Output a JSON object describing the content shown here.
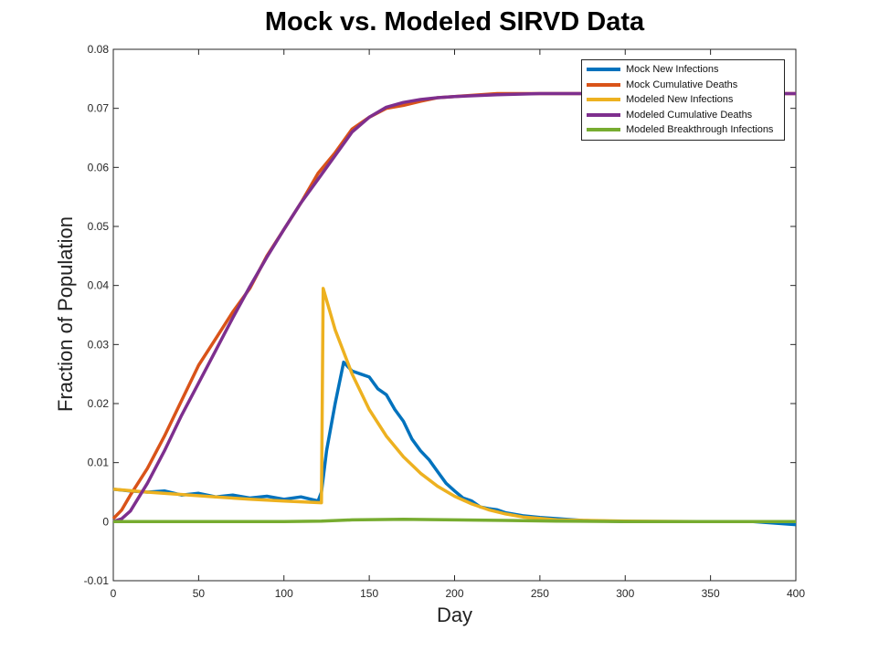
{
  "chart_data": {
    "type": "line",
    "title": "Mock vs. Modeled SIRVD Data",
    "xlabel": "Day",
    "ylabel": "Fraction of Population",
    "xlim": [
      0,
      400
    ],
    "ylim": [
      -0.01,
      0.08
    ],
    "xticks": [
      "0",
      "50",
      "100",
      "150",
      "200",
      "250",
      "300",
      "350",
      "400"
    ],
    "yticks": [
      "-0.01",
      "0",
      "0.01",
      "0.02",
      "0.03",
      "0.04",
      "0.05",
      "0.06",
      "0.07",
      "0.08"
    ],
    "legend_position": "top-right",
    "grid": false,
    "series": [
      {
        "name": "Mock New Infections",
        "color": "#0072BD",
        "points": [
          [
            0,
            0.0055
          ],
          [
            10,
            0.0052
          ],
          [
            20,
            0.005
          ],
          [
            30,
            0.0052
          ],
          [
            40,
            0.0045
          ],
          [
            50,
            0.0048
          ],
          [
            60,
            0.0042
          ],
          [
            70,
            0.0045
          ],
          [
            80,
            0.004
          ],
          [
            90,
            0.0043
          ],
          [
            100,
            0.0038
          ],
          [
            110,
            0.0042
          ],
          [
            120,
            0.0035
          ],
          [
            122,
            0.005
          ],
          [
            125,
            0.012
          ],
          [
            130,
            0.02
          ],
          [
            135,
            0.027
          ],
          [
            140,
            0.0255
          ],
          [
            145,
            0.025
          ],
          [
            150,
            0.0245
          ],
          [
            155,
            0.0225
          ],
          [
            160,
            0.0215
          ],
          [
            165,
            0.019
          ],
          [
            170,
            0.017
          ],
          [
            175,
            0.014
          ],
          [
            180,
            0.012
          ],
          [
            185,
            0.0105
          ],
          [
            190,
            0.0085
          ],
          [
            195,
            0.0065
          ],
          [
            200,
            0.0052
          ],
          [
            205,
            0.004
          ],
          [
            210,
            0.0035
          ],
          [
            215,
            0.0025
          ],
          [
            220,
            0.0022
          ],
          [
            225,
            0.002
          ],
          [
            230,
            0.0015
          ],
          [
            240,
            0.001
          ],
          [
            250,
            0.0007
          ],
          [
            275,
            0.0002
          ],
          [
            300,
            0.0
          ],
          [
            325,
            0.0
          ],
          [
            350,
            0.0
          ],
          [
            375,
            0.0
          ],
          [
            400,
            -0.0005
          ]
        ]
      },
      {
        "name": "Mock Cumulative Deaths",
        "color": "#D95319",
        "points": [
          [
            0,
            0.0005
          ],
          [
            5,
            0.002
          ],
          [
            10,
            0.0045
          ],
          [
            20,
            0.009
          ],
          [
            30,
            0.0145
          ],
          [
            40,
            0.0205
          ],
          [
            50,
            0.0265
          ],
          [
            60,
            0.031
          ],
          [
            70,
            0.0355
          ],
          [
            80,
            0.0395
          ],
          [
            90,
            0.045
          ],
          [
            100,
            0.0495
          ],
          [
            110,
            0.054
          ],
          [
            120,
            0.059
          ],
          [
            130,
            0.0625
          ],
          [
            140,
            0.0665
          ],
          [
            150,
            0.0685
          ],
          [
            160,
            0.07
          ],
          [
            170,
            0.0705
          ],
          [
            180,
            0.0712
          ],
          [
            190,
            0.0718
          ],
          [
            200,
            0.072
          ],
          [
            225,
            0.0725
          ],
          [
            250,
            0.0725
          ],
          [
            275,
            0.0725
          ],
          [
            300,
            0.0725
          ],
          [
            325,
            0.0722
          ],
          [
            350,
            0.0725
          ],
          [
            375,
            0.0725
          ],
          [
            400,
            0.0725
          ]
        ]
      },
      {
        "name": "Modeled New Infections",
        "color": "#EDB120",
        "points": [
          [
            0,
            0.0055
          ],
          [
            20,
            0.005
          ],
          [
            40,
            0.0046
          ],
          [
            60,
            0.0042
          ],
          [
            80,
            0.0038
          ],
          [
            100,
            0.0035
          ],
          [
            122,
            0.0032
          ],
          [
            123,
            0.0395
          ],
          [
            130,
            0.0325
          ],
          [
            140,
            0.025
          ],
          [
            150,
            0.019
          ],
          [
            160,
            0.0145
          ],
          [
            170,
            0.011
          ],
          [
            180,
            0.0082
          ],
          [
            190,
            0.006
          ],
          [
            200,
            0.0043
          ],
          [
            210,
            0.003
          ],
          [
            220,
            0.002
          ],
          [
            230,
            0.0013
          ],
          [
            240,
            0.0008
          ],
          [
            260,
            0.0003
          ],
          [
            300,
            0.0001
          ],
          [
            350,
            0.0
          ],
          [
            400,
            0.0
          ]
        ]
      },
      {
        "name": "Modeled Cumulative Deaths",
        "color": "#7E2F8E",
        "points": [
          [
            0,
            0.0
          ],
          [
            5,
            0.0005
          ],
          [
            10,
            0.0018
          ],
          [
            20,
            0.0065
          ],
          [
            30,
            0.012
          ],
          [
            40,
            0.018
          ],
          [
            50,
            0.0235
          ],
          [
            60,
            0.029
          ],
          [
            70,
            0.0345
          ],
          [
            80,
            0.0398
          ],
          [
            90,
            0.0448
          ],
          [
            100,
            0.0495
          ],
          [
            110,
            0.054
          ],
          [
            120,
            0.058
          ],
          [
            130,
            0.062
          ],
          [
            140,
            0.066
          ],
          [
            150,
            0.0685
          ],
          [
            160,
            0.0702
          ],
          [
            170,
            0.071
          ],
          [
            180,
            0.0715
          ],
          [
            190,
            0.0718
          ],
          [
            200,
            0.072
          ],
          [
            225,
            0.0723
          ],
          [
            250,
            0.0725
          ],
          [
            300,
            0.0725
          ],
          [
            350,
            0.0725
          ],
          [
            400,
            0.0725
          ]
        ]
      },
      {
        "name": "Modeled Breakthrough Infections",
        "color": "#77AC30",
        "points": [
          [
            0,
            0.0
          ],
          [
            100,
            0.0
          ],
          [
            122,
            0.0001
          ],
          [
            140,
            0.0003
          ],
          [
            170,
            0.0004
          ],
          [
            200,
            0.0003
          ],
          [
            230,
            0.0002
          ],
          [
            260,
            0.0001
          ],
          [
            300,
            0.0
          ],
          [
            400,
            0.0
          ]
        ]
      }
    ]
  }
}
